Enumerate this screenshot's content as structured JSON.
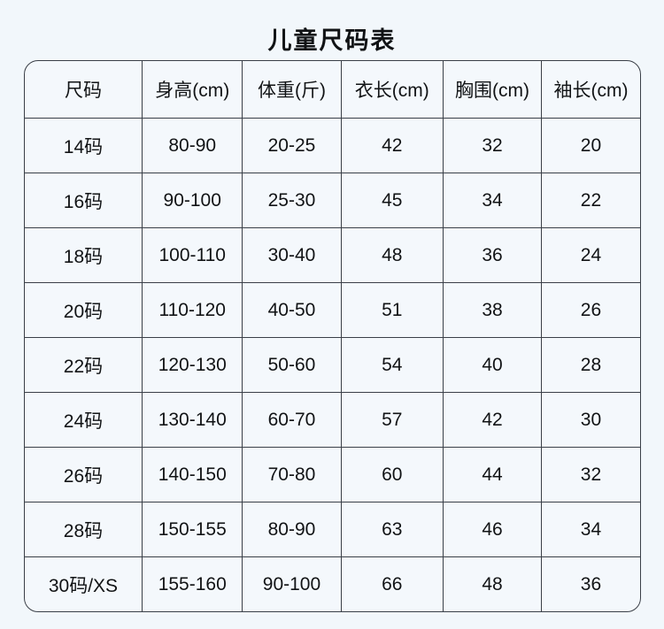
{
  "page": {
    "title": "儿童尺码表",
    "background_color": "#f2f7fb",
    "grid_line_color": "#3a3f47",
    "text_color": "#111315"
  },
  "table": {
    "headers": [
      "尺码",
      "身高(cm)",
      "体重(斤)",
      "衣长(cm)",
      "胸围(cm)",
      "袖长(cm)"
    ],
    "rows": [
      [
        "14码",
        "80-90",
        "20-25",
        "42",
        "32",
        "20"
      ],
      [
        "16码",
        "90-100",
        "25-30",
        "45",
        "34",
        "22"
      ],
      [
        "18码",
        "100-110",
        "30-40",
        "48",
        "36",
        "24"
      ],
      [
        "20码",
        "110-120",
        "40-50",
        "51",
        "38",
        "26"
      ],
      [
        "22码",
        "120-130",
        "50-60",
        "54",
        "40",
        "28"
      ],
      [
        "24码",
        "130-140",
        "60-70",
        "57",
        "42",
        "30"
      ],
      [
        "26码",
        "140-150",
        "70-80",
        "60",
        "44",
        "32"
      ],
      [
        "28码",
        "150-155",
        "80-90",
        "63",
        "46",
        "34"
      ],
      [
        "30码/XS",
        "155-160",
        "90-100",
        "66",
        "48",
        "36"
      ]
    ]
  }
}
